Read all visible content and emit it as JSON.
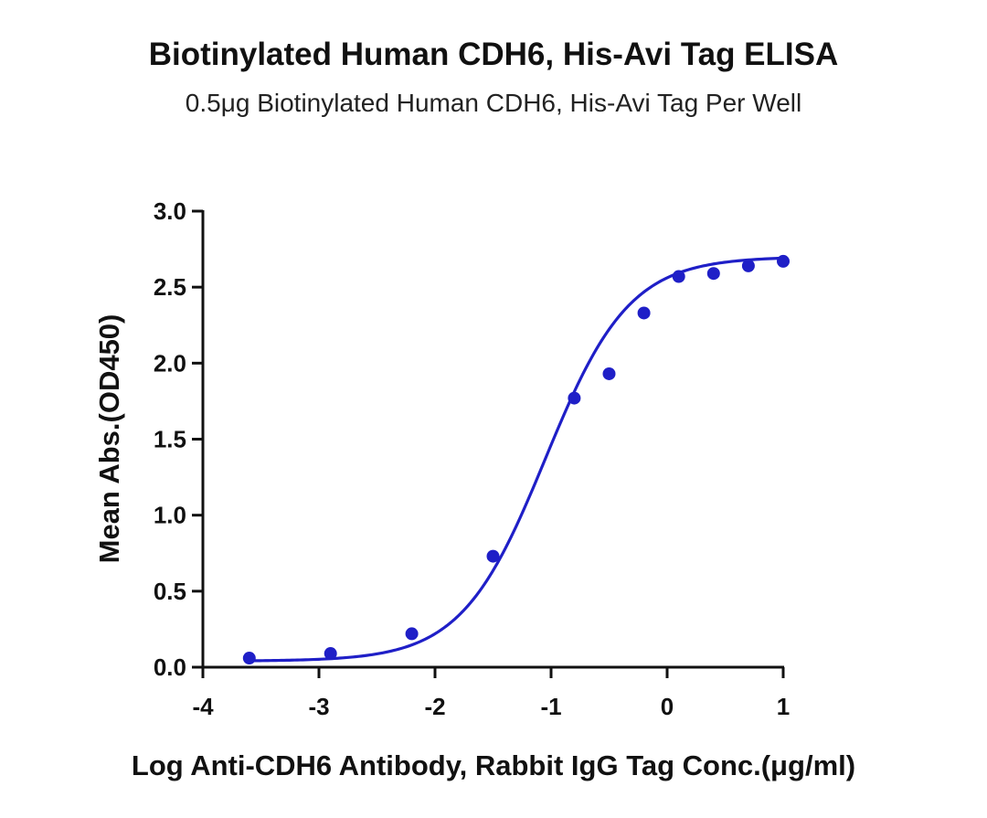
{
  "chart_data": {
    "type": "scatter",
    "title": "Biotinylated Human CDH6, His-Avi Tag ELISA",
    "subtitle": "0.5μg Biotinylated Human CDH6, His-Avi Tag Per Well",
    "xlabel": "Log Anti-CDH6 Antibody, Rabbit IgG Tag Conc.(μg/ml)",
    "ylabel": "Mean Abs.(OD450)",
    "xlim": [
      -4,
      1
    ],
    "ylim": [
      0,
      3
    ],
    "x_ticks": [
      "-4",
      "-3",
      "-2",
      "-1",
      "0",
      "1"
    ],
    "y_ticks": [
      "0.0",
      "0.5",
      "1.0",
      "1.5",
      "2.0",
      "2.5",
      "3.0"
    ],
    "grid": false,
    "color": "#1f1fc7",
    "series": [
      {
        "points": [
          {
            "x": -3.6,
            "y": 0.06
          },
          {
            "x": -2.9,
            "y": 0.09
          },
          {
            "x": -2.2,
            "y": 0.22
          },
          {
            "x": -1.5,
            "y": 0.73
          },
          {
            "x": -0.8,
            "y": 1.77
          },
          {
            "x": -0.5,
            "y": 1.93
          },
          {
            "x": -0.2,
            "y": 2.33
          },
          {
            "x": 0.1,
            "y": 2.57
          },
          {
            "x": 0.4,
            "y": 2.59
          },
          {
            "x": 0.7,
            "y": 2.64
          },
          {
            "x": 1.0,
            "y": 2.67
          }
        ],
        "fit": {
          "model": "4PL",
          "bottom": 0.04,
          "top": 2.7,
          "log_ec50": -1.05,
          "hill": 1.2
        }
      }
    ]
  }
}
